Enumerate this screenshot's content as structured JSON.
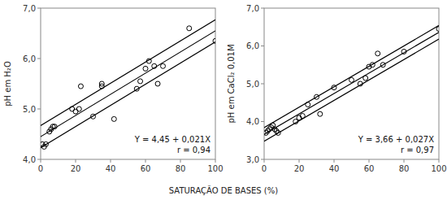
{
  "chart_data": [
    {
      "type": "scatter",
      "xlabel": "SATURAÇÃO DE BASES (%)",
      "ylabel": "pH em H₂O",
      "annotations": [
        "Y = 4,45 + 0,021X",
        "r = 0,94"
      ],
      "xlim": [
        0,
        100
      ],
      "xticks": [
        0,
        20,
        40,
        60,
        80,
        100
      ],
      "ylim": [
        4.0,
        7.0
      ],
      "yticks": [
        {
          "value": 4.0,
          "label": "4,0"
        },
        {
          "value": 5.0,
          "label": "5,0"
        },
        {
          "value": 6.0,
          "label": "6,0"
        },
        {
          "value": 7.0,
          "label": "7,0"
        }
      ],
      "grid": false,
      "series": [
        {
          "type": "scatter",
          "color": "#000000",
          "marker": "open-circle",
          "x": [
            1,
            2,
            3,
            5,
            6,
            7,
            8,
            18,
            20,
            22,
            23,
            30,
            35,
            35,
            42,
            55,
            57,
            60,
            62,
            65,
            67,
            70,
            85,
            100
          ],
          "values": [
            4.3,
            4.25,
            4.3,
            4.55,
            4.6,
            4.65,
            4.65,
            5.0,
            4.95,
            5.0,
            5.45,
            4.85,
            5.5,
            5.45,
            4.8,
            5.4,
            5.55,
            5.8,
            5.95,
            5.85,
            5.5,
            5.85,
            6.6,
            6.35
          ]
        },
        {
          "type": "line",
          "color": "#000000",
          "line_style": "solid",
          "x": [
            0,
            100
          ],
          "values": [
            4.67,
            6.77
          ]
        },
        {
          "type": "line",
          "color": "#000000",
          "line_style": "solid",
          "x": [
            0,
            100
          ],
          "values": [
            4.23,
            6.33
          ]
        },
        {
          "type": "line",
          "color": "#000000",
          "line_style": "solid",
          "x": [
            0,
            100
          ],
          "values": [
            4.45,
            6.55
          ]
        }
      ]
    },
    {
      "type": "scatter",
      "ylabel": "pH em CaCl₂ 0,01M",
      "annotations": [
        "Y = 3,66 + 0,027X",
        "r = 0,97"
      ],
      "xlim": [
        0,
        100
      ],
      "xticks": [
        0,
        20,
        40,
        60,
        80,
        100
      ],
      "ylim": [
        3.0,
        7.0
      ],
      "yticks": [
        {
          "value": 3.0,
          "label": "3,0"
        },
        {
          "value": 4.0,
          "label": "4,0"
        },
        {
          "value": 5.0,
          "label": "5,0"
        },
        {
          "value": 6.0,
          "label": "6,0"
        },
        {
          "value": 7.0,
          "label": "7,0"
        }
      ],
      "grid": false,
      "series": [
        {
          "type": "scatter",
          "color": "#000000",
          "marker": "open-circle",
          "x": [
            1,
            2,
            3,
            4,
            5,
            6,
            7,
            8,
            18,
            20,
            22,
            25,
            30,
            32,
            40,
            50,
            55,
            58,
            60,
            62,
            65,
            68,
            80,
            100
          ],
          "values": [
            3.7,
            3.75,
            3.8,
            3.85,
            3.9,
            3.8,
            3.75,
            3.7,
            4.0,
            4.1,
            4.15,
            4.45,
            4.65,
            4.2,
            4.9,
            5.1,
            5.0,
            5.15,
            5.45,
            5.5,
            5.8,
            5.5,
            5.85,
            6.45
          ]
        },
        {
          "type": "line",
          "color": "#000000",
          "line_style": "solid",
          "x": [
            0,
            100
          ],
          "values": [
            3.84,
            6.54
          ]
        },
        {
          "type": "line",
          "color": "#000000",
          "line_style": "solid",
          "x": [
            0,
            100
          ],
          "values": [
            3.48,
            6.18
          ]
        },
        {
          "type": "line",
          "color": "#000000",
          "line_style": "solid",
          "x": [
            0,
            100
          ],
          "values": [
            3.66,
            6.36
          ]
        }
      ]
    }
  ]
}
